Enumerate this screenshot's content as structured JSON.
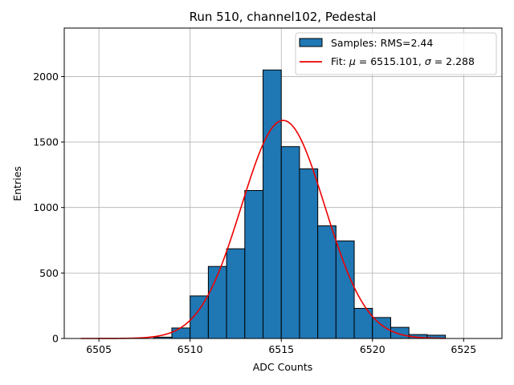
{
  "chart_data": {
    "type": "bar",
    "title": "Run 510, channel102, Pedestal",
    "xlabel": "ADC Counts",
    "ylabel": "Entries",
    "xlim": [
      6503.1,
      6527.1
    ],
    "ylim": [
      0,
      2370
    ],
    "grid": true,
    "legend_position": "top-right",
    "x_ticks": [
      6505,
      6510,
      6515,
      6520,
      6525
    ],
    "y_ticks": [
      0,
      500,
      1000,
      1500,
      2000
    ],
    "bins": [
      {
        "left": 6508,
        "right": 6509,
        "count": 10
      },
      {
        "left": 6509,
        "right": 6510,
        "count": 80
      },
      {
        "left": 6510,
        "right": 6511,
        "count": 325
      },
      {
        "left": 6511,
        "right": 6512,
        "count": 550
      },
      {
        "left": 6512,
        "right": 6513,
        "count": 685
      },
      {
        "left": 6513,
        "right": 6514,
        "count": 1130
      },
      {
        "left": 6514,
        "right": 6515,
        "count": 2050
      },
      {
        "left": 6515,
        "right": 6516,
        "count": 1465
      },
      {
        "left": 6516,
        "right": 6517,
        "count": 1295
      },
      {
        "left": 6517,
        "right": 6518,
        "count": 860
      },
      {
        "left": 6518,
        "right": 6519,
        "count": 745
      },
      {
        "left": 6519,
        "right": 6520,
        "count": 230
      },
      {
        "left": 6520,
        "right": 6521,
        "count": 160
      },
      {
        "left": 6521,
        "right": 6522,
        "count": 85
      },
      {
        "left": 6522,
        "right": 6523,
        "count": 30
      },
      {
        "left": 6523,
        "right": 6524,
        "count": 25
      }
    ],
    "fit": {
      "type": "gaussian",
      "mu": 6515.101,
      "sigma": 2.288,
      "amplitude": 1665,
      "x_range": [
        6504,
        6524
      ]
    },
    "series": [
      {
        "name": "Samples: RMS=2.44",
        "kind": "histogram",
        "color": "#1f77b4"
      },
      {
        "name_prefix": "Fit: ",
        "name_mu_symbol": "μ",
        "name_mu_value": " = 6515.101, ",
        "name_sigma_symbol": "σ",
        "name_sigma_value": " = 2.288",
        "kind": "line",
        "color": "#ee0000"
      }
    ]
  }
}
